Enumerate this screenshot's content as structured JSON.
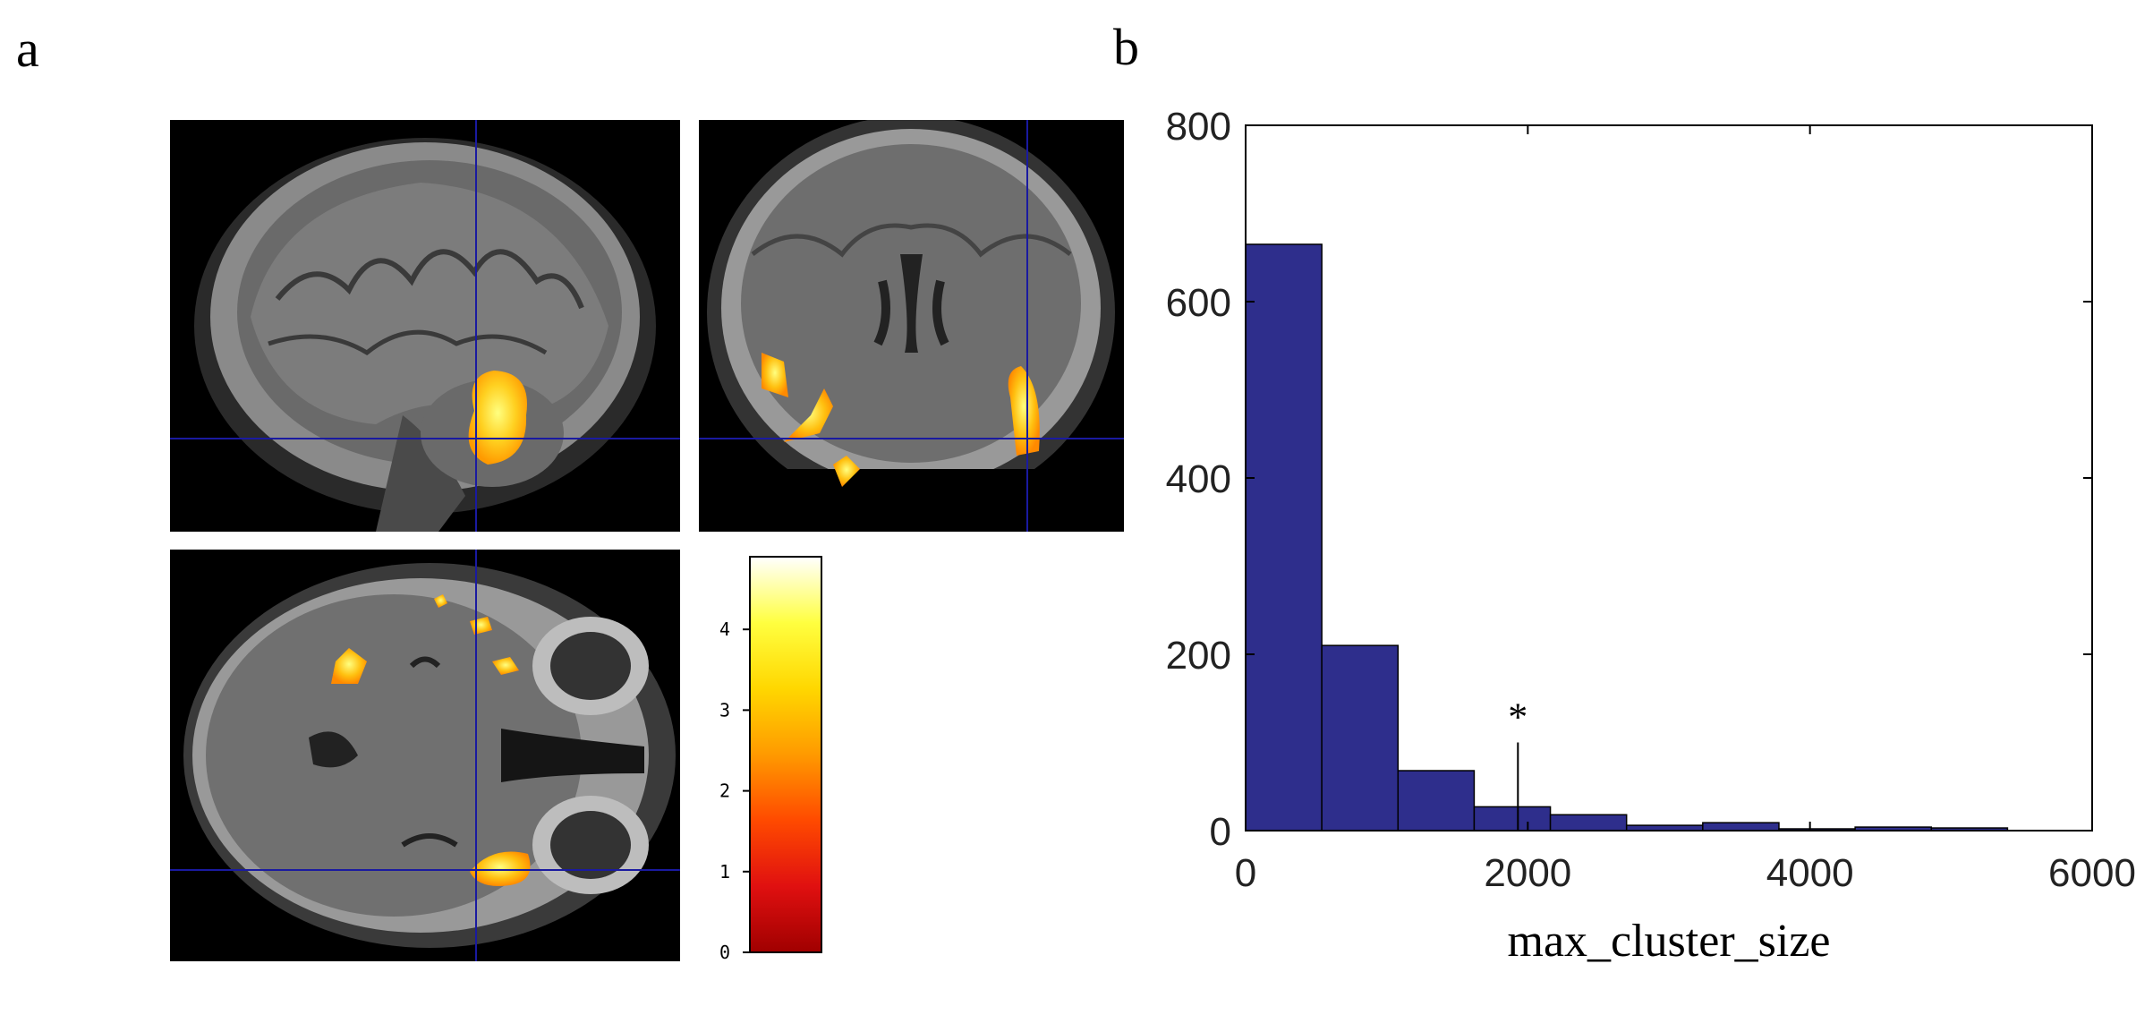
{
  "panels": {
    "a_label": "a",
    "b_label": "b"
  },
  "colorbar": {
    "ticks": [
      "0",
      "1",
      "2",
      "3",
      "4"
    ],
    "min": 0,
    "max": 4.9,
    "colors": [
      "#a00000",
      "#e01010",
      "#ff4a00",
      "#ff9a00",
      "#ffd700",
      "#ffff40",
      "#ffffff"
    ]
  },
  "chart_data": {
    "type": "bar",
    "xlabel": "max_cluster_size",
    "xlim": [
      0,
      6000
    ],
    "ylim": [
      0,
      800
    ],
    "xticks": [
      0,
      2000,
      4000,
      6000
    ],
    "yticks": [
      0,
      200,
      400,
      600,
      800
    ],
    "bin_edges": [
      0,
      540,
      1080,
      1620,
      2160,
      2700,
      3240,
      3780,
      4320,
      4860,
      5400
    ],
    "values": [
      665,
      210,
      68,
      27,
      18,
      6,
      9,
      2,
      4,
      3
    ],
    "bar_color": "#2e2e8c",
    "marker": {
      "x": 1930,
      "height": 100,
      "label": "*"
    },
    "grid": false
  }
}
